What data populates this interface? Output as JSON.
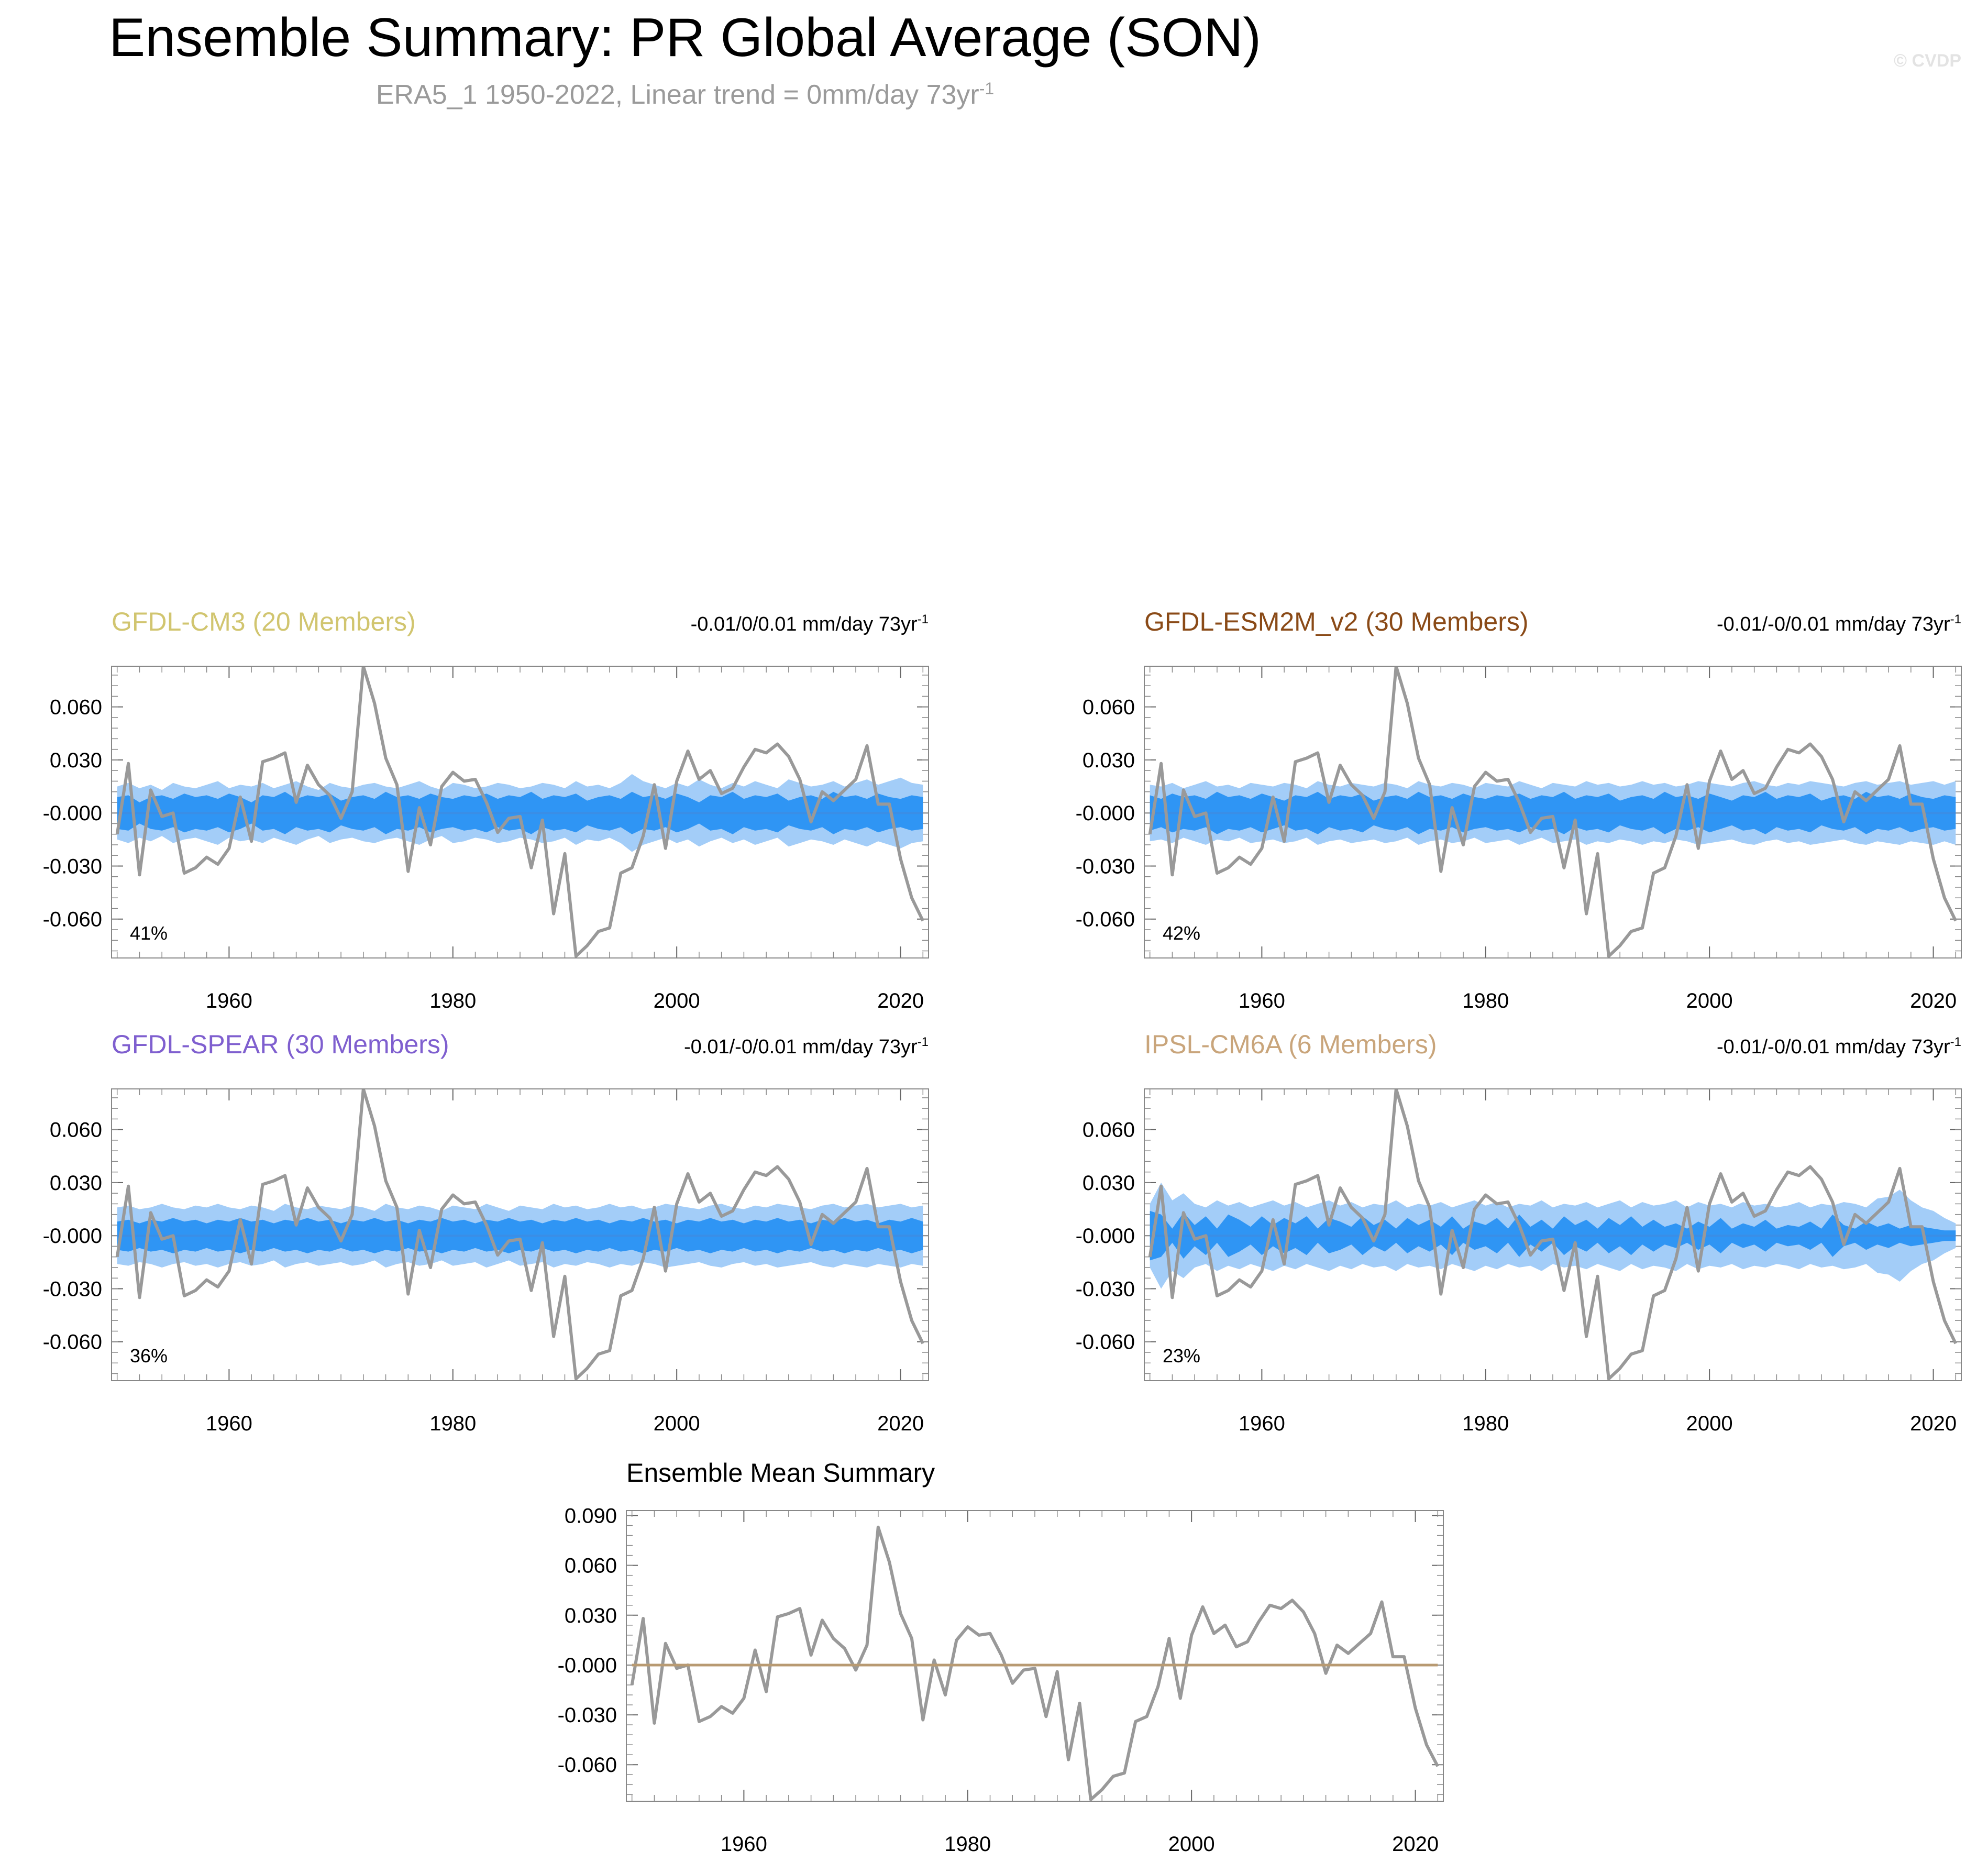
{
  "header": {
    "title": "Ensemble Summary: PR Global Average (SON)",
    "subtitle": "ERA5_1 1950-2022, Linear trend = 0mm/day 73yr",
    "subtitle_sup": "-1",
    "watermark": "© CVDP"
  },
  "colors": {
    "observation_line": "#999999",
    "ensemble_mean_line": "#3a8ee6",
    "inner_band": "#2f95f4",
    "outer_band": "#a3cdf8",
    "summary_mean_line": "#b89a72"
  },
  "x_ticks": [
    1960,
    1980,
    2000,
    2020
  ],
  "x_range": [
    1949.5,
    2022.5
  ],
  "observed_series": {
    "years": [
      1950,
      1951,
      1952,
      1953,
      1954,
      1955,
      1956,
      1957,
      1958,
      1959,
      1960,
      1961,
      1962,
      1963,
      1964,
      1965,
      1966,
      1967,
      1968,
      1969,
      1970,
      1971,
      1972,
      1973,
      1974,
      1975,
      1976,
      1977,
      1978,
      1979,
      1980,
      1981,
      1982,
      1983,
      1984,
      1985,
      1986,
      1987,
      1988,
      1989,
      1990,
      1991,
      1992,
      1993,
      1994,
      1995,
      1996,
      1997,
      1998,
      1999,
      2000,
      2001,
      2002,
      2003,
      2004,
      2005,
      2006,
      2007,
      2008,
      2009,
      2010,
      2011,
      2012,
      2013,
      2014,
      2015,
      2016,
      2017,
      2018,
      2019,
      2020,
      2021,
      2022
    ],
    "values": [
      -0.012,
      0.028,
      -0.035,
      0.013,
      -0.002,
      0.0,
      -0.034,
      -0.031,
      -0.025,
      -0.029,
      -0.02,
      0.009,
      -0.016,
      0.029,
      0.031,
      0.034,
      0.006,
      0.027,
      0.016,
      0.01,
      -0.003,
      0.012,
      0.083,
      0.062,
      0.031,
      0.016,
      -0.033,
      0.003,
      -0.018,
      0.015,
      0.023,
      0.018,
      0.019,
      0.006,
      -0.011,
      -0.003,
      -0.002,
      -0.031,
      -0.004,
      -0.057,
      -0.023,
      -0.081,
      -0.075,
      -0.067,
      -0.065,
      -0.034,
      -0.031,
      -0.013,
      0.016,
      -0.02,
      0.018,
      0.035,
      0.019,
      0.024,
      0.011,
      0.014,
      0.026,
      0.036,
      0.034,
      0.039,
      0.032,
      0.019,
      -0.005,
      0.012,
      0.007,
      0.013,
      0.019,
      0.038,
      0.005,
      0.005,
      -0.026,
      -0.048,
      -0.061
    ]
  },
  "panels": [
    {
      "model": "GFDL-CM3 (20 Members)",
      "model_color": "#d1c56f",
      "trend_text": "-0.01/0/0.01 mm/day 73yr",
      "trend_sup": "-1",
      "percent": "41%",
      "y_ticks": [
        "0.060",
        "0.030",
        "-0.000",
        "-0.030",
        "-0.060"
      ],
      "y_tick_values": [
        0.06,
        0.03,
        0.0,
        -0.03,
        -0.06
      ],
      "y_range": [
        -0.082,
        0.083
      ],
      "inner_half_width": [
        0.009,
        0.01,
        0.006,
        0.009,
        0.01,
        0.008,
        0.011,
        0.009,
        0.01,
        0.008,
        0.011,
        0.009,
        0.006,
        0.01,
        0.009,
        0.012,
        0.008,
        0.01,
        0.009,
        0.011,
        0.007,
        0.009,
        0.01,
        0.008,
        0.012,
        0.009,
        0.01,
        0.008,
        0.011,
        0.009,
        0.008,
        0.01,
        0.009,
        0.011,
        0.008,
        0.01,
        0.009,
        0.012,
        0.008,
        0.01,
        0.009,
        0.011,
        0.007,
        0.009,
        0.01,
        0.008,
        0.012,
        0.009,
        0.01,
        0.008,
        0.011,
        0.009,
        0.006,
        0.01,
        0.009,
        0.012,
        0.008,
        0.01,
        0.009,
        0.011,
        0.007,
        0.009,
        0.01,
        0.008,
        0.012,
        0.009,
        0.01,
        0.008,
        0.011,
        0.009,
        0.008,
        0.01,
        0.009
      ],
      "outer_half_width": [
        0.015,
        0.017,
        0.014,
        0.016,
        0.013,
        0.017,
        0.015,
        0.014,
        0.016,
        0.018,
        0.014,
        0.016,
        0.015,
        0.017,
        0.014,
        0.016,
        0.018,
        0.015,
        0.013,
        0.017,
        0.015,
        0.014,
        0.016,
        0.017,
        0.015,
        0.014,
        0.016,
        0.018,
        0.015,
        0.013,
        0.017,
        0.016,
        0.014,
        0.015,
        0.017,
        0.016,
        0.014,
        0.015,
        0.017,
        0.016,
        0.014,
        0.018,
        0.015,
        0.016,
        0.014,
        0.017,
        0.022,
        0.018,
        0.016,
        0.014,
        0.017,
        0.015,
        0.019,
        0.016,
        0.014,
        0.017,
        0.015,
        0.018,
        0.016,
        0.014,
        0.019,
        0.017,
        0.015,
        0.016,
        0.018,
        0.015,
        0.017,
        0.019,
        0.016,
        0.018,
        0.02,
        0.017,
        0.016
      ]
    },
    {
      "model": "GFDL-ESM2M_v2 (30 Members)",
      "model_color": "#8a4a17",
      "trend_text": "-0.01/-0/0.01 mm/day 73yr",
      "trend_sup": "-1",
      "percent": "42%",
      "y_ticks": [
        "0.060",
        "0.030",
        "-0.000",
        "-0.030",
        "-0.060"
      ],
      "y_tick_values": [
        0.06,
        0.03,
        0.0,
        -0.03,
        -0.06
      ],
      "y_range": [
        -0.082,
        0.083
      ],
      "inner_half_width": [
        0.01,
        0.008,
        0.011,
        0.009,
        0.01,
        0.008,
        0.012,
        0.009,
        0.01,
        0.008,
        0.011,
        0.009,
        0.007,
        0.01,
        0.009,
        0.012,
        0.008,
        0.01,
        0.009,
        0.011,
        0.007,
        0.009,
        0.01,
        0.008,
        0.012,
        0.009,
        0.01,
        0.008,
        0.011,
        0.009,
        0.008,
        0.01,
        0.009,
        0.011,
        0.008,
        0.01,
        0.009,
        0.012,
        0.008,
        0.01,
        0.009,
        0.011,
        0.007,
        0.009,
        0.01,
        0.008,
        0.012,
        0.009,
        0.01,
        0.008,
        0.011,
        0.009,
        0.007,
        0.01,
        0.009,
        0.012,
        0.008,
        0.01,
        0.009,
        0.011,
        0.007,
        0.009,
        0.01,
        0.008,
        0.012,
        0.009,
        0.01,
        0.008,
        0.011,
        0.009,
        0.008,
        0.01,
        0.009
      ],
      "outer_half_width": [
        0.016,
        0.015,
        0.017,
        0.014,
        0.016,
        0.018,
        0.015,
        0.016,
        0.014,
        0.017,
        0.016,
        0.015,
        0.017,
        0.016,
        0.014,
        0.018,
        0.016,
        0.015,
        0.017,
        0.016,
        0.015,
        0.017,
        0.016,
        0.014,
        0.018,
        0.016,
        0.015,
        0.017,
        0.016,
        0.014,
        0.017,
        0.016,
        0.015,
        0.018,
        0.016,
        0.014,
        0.017,
        0.016,
        0.015,
        0.018,
        0.016,
        0.017,
        0.015,
        0.016,
        0.018,
        0.016,
        0.017,
        0.015,
        0.016,
        0.018,
        0.017,
        0.016,
        0.015,
        0.017,
        0.018,
        0.016,
        0.015,
        0.017,
        0.016,
        0.018,
        0.017,
        0.016,
        0.015,
        0.017,
        0.018,
        0.016,
        0.017,
        0.018,
        0.016,
        0.017,
        0.018,
        0.016,
        0.018
      ]
    },
    {
      "model": "GFDL-SPEAR (30 Members)",
      "model_color": "#7f5fcf",
      "trend_text": "-0.01/-0/0.01 mm/day 73yr",
      "trend_sup": "-1",
      "percent": "36%",
      "y_ticks": [
        "0.060",
        "0.030",
        "-0.000",
        "-0.030",
        "-0.060"
      ],
      "y_tick_values": [
        0.06,
        0.03,
        0.0,
        -0.03,
        -0.06
      ],
      "y_range": [
        -0.082,
        0.083
      ],
      "inner_half_width": [
        0.008,
        0.009,
        0.007,
        0.009,
        0.008,
        0.01,
        0.008,
        0.009,
        0.007,
        0.009,
        0.008,
        0.01,
        0.008,
        0.009,
        0.007,
        0.009,
        0.008,
        0.01,
        0.008,
        0.009,
        0.007,
        0.009,
        0.008,
        0.01,
        0.008,
        0.009,
        0.007,
        0.009,
        0.008,
        0.01,
        0.008,
        0.009,
        0.007,
        0.009,
        0.008,
        0.01,
        0.008,
        0.009,
        0.007,
        0.009,
        0.008,
        0.01,
        0.008,
        0.009,
        0.007,
        0.009,
        0.008,
        0.01,
        0.008,
        0.009,
        0.007,
        0.009,
        0.008,
        0.01,
        0.008,
        0.009,
        0.007,
        0.009,
        0.008,
        0.01,
        0.008,
        0.009,
        0.007,
        0.009,
        0.008,
        0.01,
        0.008,
        0.009,
        0.007,
        0.009,
        0.008,
        0.01,
        0.008
      ],
      "outer_half_width": [
        0.016,
        0.017,
        0.015,
        0.016,
        0.018,
        0.016,
        0.015,
        0.017,
        0.016,
        0.018,
        0.016,
        0.015,
        0.017,
        0.016,
        0.014,
        0.018,
        0.016,
        0.015,
        0.017,
        0.016,
        0.015,
        0.017,
        0.016,
        0.014,
        0.018,
        0.016,
        0.015,
        0.017,
        0.016,
        0.014,
        0.017,
        0.016,
        0.015,
        0.018,
        0.016,
        0.014,
        0.017,
        0.016,
        0.015,
        0.018,
        0.016,
        0.017,
        0.015,
        0.016,
        0.018,
        0.016,
        0.017,
        0.015,
        0.016,
        0.018,
        0.017,
        0.016,
        0.015,
        0.017,
        0.018,
        0.016,
        0.015,
        0.017,
        0.016,
        0.018,
        0.017,
        0.016,
        0.015,
        0.017,
        0.018,
        0.016,
        0.017,
        0.018,
        0.016,
        0.017,
        0.018,
        0.016,
        0.017
      ]
    },
    {
      "model": "IPSL-CM6A (6 Members)",
      "model_color": "#c9a57b",
      "trend_text": "-0.01/-0/0.01 mm/day 73yr",
      "trend_sup": "-1",
      "percent": "23%",
      "y_ticks": [
        "0.060",
        "0.030",
        "-0.000",
        "-0.030",
        "-0.060"
      ],
      "y_tick_values": [
        0.06,
        0.03,
        0.0,
        -0.03,
        -0.06
      ],
      "y_range": [
        -0.082,
        0.083
      ],
      "inner_half_width": [
        0.014,
        0.012,
        0.004,
        0.013,
        0.006,
        0.011,
        0.004,
        0.012,
        0.009,
        0.005,
        0.011,
        0.006,
        0.01,
        0.007,
        0.011,
        0.004,
        0.01,
        0.008,
        0.005,
        0.011,
        0.006,
        0.009,
        0.004,
        0.01,
        0.006,
        0.009,
        0.005,
        0.011,
        0.004,
        0.008,
        0.006,
        0.01,
        0.004,
        0.012,
        0.005,
        0.009,
        0.004,
        0.011,
        0.006,
        0.009,
        0.004,
        0.01,
        0.006,
        0.011,
        0.005,
        0.009,
        0.005,
        0.007,
        0.004,
        0.008,
        0.005,
        0.01,
        0.004,
        0.007,
        0.005,
        0.009,
        0.004,
        0.006,
        0.005,
        0.008,
        0.004,
        0.012,
        0.006,
        0.004,
        0.008,
        0.005,
        0.007,
        0.004,
        0.006,
        0.005,
        0.004,
        0.003,
        0.003
      ],
      "outer_half_width": [
        0.018,
        0.03,
        0.02,
        0.024,
        0.018,
        0.016,
        0.02,
        0.017,
        0.019,
        0.016,
        0.018,
        0.02,
        0.017,
        0.019,
        0.016,
        0.018,
        0.02,
        0.017,
        0.019,
        0.016,
        0.018,
        0.017,
        0.02,
        0.016,
        0.018,
        0.017,
        0.019,
        0.016,
        0.018,
        0.02,
        0.017,
        0.019,
        0.016,
        0.018,
        0.017,
        0.02,
        0.016,
        0.018,
        0.017,
        0.019,
        0.016,
        0.018,
        0.02,
        0.016,
        0.019,
        0.017,
        0.018,
        0.02,
        0.016,
        0.019,
        0.017,
        0.018,
        0.016,
        0.019,
        0.017,
        0.018,
        0.016,
        0.017,
        0.019,
        0.016,
        0.018,
        0.017,
        0.019,
        0.018,
        0.016,
        0.021,
        0.022,
        0.026,
        0.02,
        0.016,
        0.014,
        0.01,
        0.007
      ]
    }
  ],
  "summary": {
    "title": "Ensemble Mean Summary",
    "y_ticks": [
      "0.090",
      "0.060",
      "0.030",
      "-0.000",
      "-0.030",
      "-0.060"
    ],
    "y_tick_values": [
      0.09,
      0.06,
      0.03,
      0.0,
      -0.03,
      -0.06
    ],
    "y_range": [
      -0.082,
      0.093
    ],
    "mean_value": 0.0
  },
  "chart_data": [
    {
      "type": "area",
      "title": "GFDL-CM3 (20 Members)",
      "note": "-0.01/0/0.01 mm/day 73yr-1",
      "percent_label": "41%",
      "ylim": [
        -0.082,
        0.083
      ],
      "series": [
        {
          "name": "ERA5_1 1950-2022",
          "type": "line",
          "values": "observed_series.values"
        }
      ]
    },
    {
      "type": "area",
      "title": "GFDL-ESM2M_v2 (30 Members)",
      "note": "-0.01/-0/0.01 mm/day 73yr-1",
      "percent_label": "42%",
      "ylim": [
        -0.082,
        0.083
      ]
    },
    {
      "type": "area",
      "title": "GFDL-SPEAR (30 Members)",
      "note": "-0.01/-0/0.01 mm/day 73yr-1",
      "percent_label": "36%",
      "ylim": [
        -0.082,
        0.083
      ]
    },
    {
      "type": "area",
      "title": "IPSL-CM6A (6 Members)",
      "note": "-0.01/-0/0.01 mm/day 73yr-1",
      "percent_label": "23%",
      "ylim": [
        -0.082,
        0.083
      ]
    },
    {
      "type": "line",
      "title": "Ensemble Mean Summary",
      "ylim": [
        -0.082,
        0.093
      ]
    }
  ]
}
